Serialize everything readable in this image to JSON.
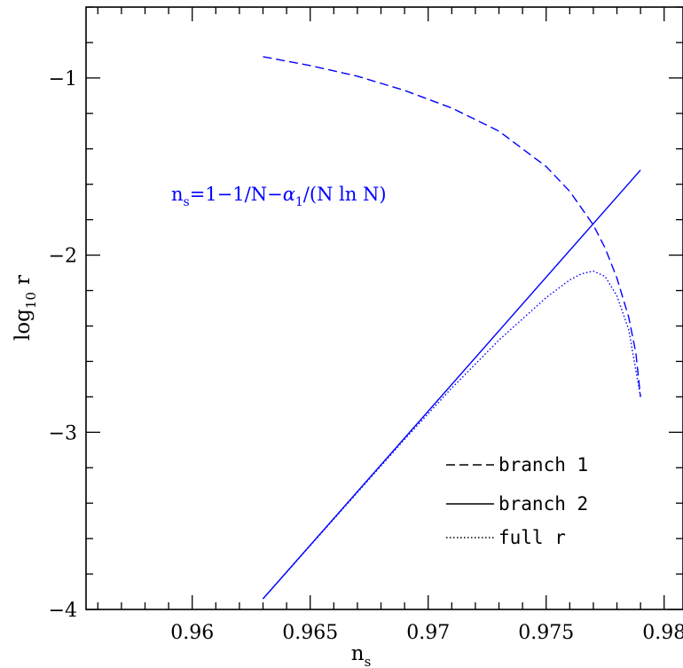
{
  "chart_data": {
    "type": "line",
    "title": "",
    "xlabel": "n",
    "xlabel_sub": "s",
    "ylabel": "log",
    "ylabel_sub": "10",
    "ylabel_var": "r",
    "xlim": [
      0.9555,
      0.9808
    ],
    "ylim": [
      -4.0,
      -0.6
    ],
    "x_ticks": [
      0.96,
      0.965,
      0.97,
      0.975,
      0.98
    ],
    "x_tick_labels": [
      "0.96",
      "0.965",
      "0.97",
      "0.975",
      "0.98"
    ],
    "y_ticks": [
      -1,
      -2,
      -3,
      -4
    ],
    "y_tick_labels": [
      "−1",
      "−2",
      "−3",
      "−4"
    ],
    "annotation": {
      "parts": [
        "n",
        "s",
        "=1−1/N−",
        "α",
        "1",
        "/(N ln N)"
      ],
      "color": "#0000ff"
    },
    "legend": {
      "placement": "bottom-right",
      "entries": [
        {
          "label": "branch 1",
          "style": "dashed"
        },
        {
          "label": "branch 2",
          "style": "solid"
        },
        {
          "label": "full r",
          "style": "dotted"
        }
      ]
    },
    "series": [
      {
        "name": "branch 1",
        "style": "dashed",
        "color": "#0000ff",
        "x": [
          0.963,
          0.965,
          0.967,
          0.969,
          0.971,
          0.973,
          0.975,
          0.976,
          0.977,
          0.9775,
          0.978,
          0.9785,
          0.9788,
          0.979
        ],
        "y": [
          -0.88,
          -0.93,
          -0.99,
          -1.07,
          -1.17,
          -1.3,
          -1.5,
          -1.64,
          -1.83,
          -1.96,
          -2.13,
          -2.35,
          -2.55,
          -2.8
        ]
      },
      {
        "name": "branch 2",
        "style": "solid",
        "color": "#0000ff",
        "x": [
          0.963,
          0.979
        ],
        "y": [
          -3.94,
          -1.52
        ]
      },
      {
        "name": "full r",
        "style": "dotted",
        "color": "#0000ff",
        "x": [
          0.963,
          0.966,
          0.969,
          0.971,
          0.973,
          0.975,
          0.976,
          0.9765,
          0.977,
          0.9775,
          0.978,
          0.9785,
          0.979
        ],
        "y": [
          -3.94,
          -3.49,
          -3.04,
          -2.75,
          -2.48,
          -2.24,
          -2.14,
          -2.105,
          -2.09,
          -2.12,
          -2.23,
          -2.42,
          -2.8
        ]
      }
    ]
  }
}
